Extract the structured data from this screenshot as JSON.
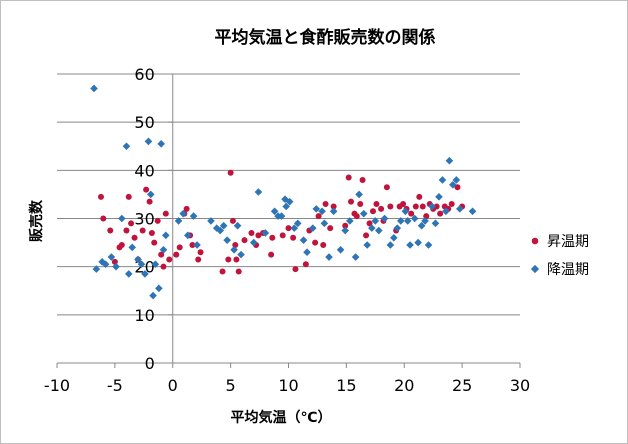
{
  "chart_data": {
    "type": "scatter",
    "title": "平均気温と食酢販売数の関係",
    "xlabel": "平均気温（℃）",
    "ylabel": "販売数",
    "xlim": [
      -10,
      30
    ],
    "ylim": [
      0,
      60
    ],
    "xticks": [
      -10,
      -5,
      0,
      5,
      10,
      15,
      20,
      25,
      30
    ],
    "yticks": [
      0,
      10,
      20,
      30,
      40,
      50,
      60
    ],
    "grid": "horizontal",
    "legend_position": "right",
    "series": [
      {
        "name": "昇温期",
        "color": "#c0143c",
        "marker": "circle",
        "points": [
          [
            -6.2,
            34.5
          ],
          [
            -6.0,
            30.0
          ],
          [
            -5.4,
            27.5
          ],
          [
            -5.0,
            21.0
          ],
          [
            -4.6,
            24.0
          ],
          [
            -4.4,
            24.5
          ],
          [
            -4.0,
            27.5
          ],
          [
            -3.8,
            34.5
          ],
          [
            -3.6,
            29.0
          ],
          [
            -3.3,
            26.0
          ],
          [
            -3.0,
            21.5
          ],
          [
            -2.6,
            27.5
          ],
          [
            -2.3,
            36.0
          ],
          [
            -2.0,
            33.5
          ],
          [
            -1.8,
            27.0
          ],
          [
            -1.6,
            25.0
          ],
          [
            -1.3,
            29.5
          ],
          [
            -1.0,
            22.5
          ],
          [
            -0.8,
            20.0
          ],
          [
            -0.6,
            31.0
          ],
          [
            -0.3,
            21.5
          ],
          [
            0.3,
            22.5
          ],
          [
            0.6,
            24.0
          ],
          [
            1.0,
            31.0
          ],
          [
            1.2,
            32.0
          ],
          [
            1.5,
            26.5
          ],
          [
            1.7,
            24.5
          ],
          [
            2.2,
            21.5
          ],
          [
            2.4,
            23.0
          ],
          [
            4.3,
            19.0
          ],
          [
            4.8,
            21.5
          ],
          [
            5.0,
            39.5
          ],
          [
            5.2,
            29.5
          ],
          [
            5.4,
            24.5
          ],
          [
            5.5,
            21.5
          ],
          [
            5.7,
            19.0
          ],
          [
            6.2,
            25.5
          ],
          [
            6.8,
            27.0
          ],
          [
            7.2,
            24.5
          ],
          [
            7.4,
            26.5
          ],
          [
            7.8,
            27.0
          ],
          [
            8.5,
            22.5
          ],
          [
            8.6,
            26.0
          ],
          [
            9.5,
            26.5
          ],
          [
            10.0,
            28.0
          ],
          [
            10.4,
            26.0
          ],
          [
            10.6,
            19.5
          ],
          [
            11.5,
            20.5
          ],
          [
            11.8,
            27.5
          ],
          [
            12.3,
            25.0
          ],
          [
            12.6,
            30.5
          ],
          [
            13.0,
            24.5
          ],
          [
            13.2,
            33.0
          ],
          [
            13.6,
            28.0
          ],
          [
            13.9,
            32.5
          ],
          [
            14.9,
            28.5
          ],
          [
            15.2,
            38.5
          ],
          [
            15.4,
            33.5
          ],
          [
            15.7,
            31.0
          ],
          [
            15.9,
            30.5
          ],
          [
            16.2,
            33.0
          ],
          [
            16.4,
            38.0
          ],
          [
            16.7,
            26.5
          ],
          [
            17.0,
            29.0
          ],
          [
            17.3,
            31.5
          ],
          [
            17.6,
            33.0
          ],
          [
            18.0,
            32.0
          ],
          [
            18.2,
            29.5
          ],
          [
            18.5,
            36.5
          ],
          [
            18.8,
            32.5
          ],
          [
            19.3,
            27.5
          ],
          [
            19.6,
            32.5
          ],
          [
            19.9,
            33.0
          ],
          [
            20.2,
            32.0
          ],
          [
            20.6,
            31.0
          ],
          [
            21.0,
            32.5
          ],
          [
            21.3,
            34.5
          ],
          [
            21.6,
            32.5
          ],
          [
            21.9,
            30.5
          ],
          [
            22.2,
            33.0
          ],
          [
            22.5,
            32.0
          ],
          [
            22.8,
            32.5
          ],
          [
            23.1,
            31.0
          ],
          [
            23.5,
            32.5
          ],
          [
            23.8,
            32.0
          ],
          [
            24.1,
            33.0
          ],
          [
            24.6,
            36.5
          ],
          [
            25.0,
            32.5
          ]
        ]
      },
      {
        "name": "降温期",
        "color": "#2e75b6",
        "marker": "diamond",
        "points": [
          [
            -6.8,
            57.0
          ],
          [
            -6.6,
            19.5
          ],
          [
            -6.1,
            21.0
          ],
          [
            -5.8,
            20.5
          ],
          [
            -5.3,
            22.0
          ],
          [
            -4.9,
            20.0
          ],
          [
            -4.4,
            30.0
          ],
          [
            -4.0,
            45.0
          ],
          [
            -3.8,
            18.5
          ],
          [
            -3.5,
            24.0
          ],
          [
            -3.0,
            21.5
          ],
          [
            -2.7,
            20.5
          ],
          [
            -2.4,
            18.5
          ],
          [
            -2.1,
            46.0
          ],
          [
            -1.9,
            35.0
          ],
          [
            -1.7,
            14.0
          ],
          [
            -1.5,
            20.5
          ],
          [
            -1.2,
            15.5
          ],
          [
            -1.0,
            45.5
          ],
          [
            -0.8,
            23.5
          ],
          [
            -0.6,
            26.5
          ],
          [
            0.5,
            29.5
          ],
          [
            0.9,
            31.0
          ],
          [
            1.3,
            26.5
          ],
          [
            1.8,
            30.5
          ],
          [
            2.1,
            24.5
          ],
          [
            3.3,
            29.5
          ],
          [
            3.8,
            28.0
          ],
          [
            4.1,
            27.5
          ],
          [
            4.4,
            28.5
          ],
          [
            4.7,
            25.5
          ],
          [
            5.3,
            23.5
          ],
          [
            5.6,
            28.5
          ],
          [
            5.9,
            22.5
          ],
          [
            7.0,
            25.0
          ],
          [
            7.4,
            35.5
          ],
          [
            8.0,
            27.0
          ],
          [
            8.8,
            31.5
          ],
          [
            9.1,
            30.5
          ],
          [
            9.4,
            30.5
          ],
          [
            9.7,
            34.0
          ],
          [
            10.1,
            33.5
          ],
          [
            10.5,
            28.0
          ],
          [
            10.8,
            29.0
          ],
          [
            11.3,
            25.5
          ],
          [
            11.6,
            23.0
          ],
          [
            12.1,
            28.0
          ],
          [
            12.4,
            32.0
          ],
          [
            13.1,
            29.0
          ],
          [
            13.5,
            22.0
          ],
          [
            13.9,
            31.5
          ],
          [
            14.5,
            23.5
          ],
          [
            14.9,
            27.5
          ],
          [
            15.3,
            29.5
          ],
          [
            15.8,
            22.0
          ],
          [
            16.1,
            35.0
          ],
          [
            16.5,
            31.0
          ],
          [
            16.8,
            24.5
          ],
          [
            17.2,
            28.0
          ],
          [
            17.5,
            29.5
          ],
          [
            17.8,
            27.5
          ],
          [
            18.3,
            30.0
          ],
          [
            18.8,
            24.5
          ],
          [
            19.1,
            26.0
          ],
          [
            19.4,
            28.0
          ],
          [
            19.7,
            29.5
          ],
          [
            20.1,
            31.5
          ],
          [
            20.5,
            24.5
          ],
          [
            20.9,
            30.0
          ],
          [
            21.2,
            25.0
          ],
          [
            21.5,
            28.5
          ],
          [
            21.8,
            29.5
          ],
          [
            22.1,
            24.5
          ],
          [
            22.4,
            32.5
          ],
          [
            22.7,
            29.0
          ],
          [
            23.0,
            34.5
          ],
          [
            23.3,
            38.0
          ],
          [
            23.6,
            31.5
          ],
          [
            23.9,
            42.0
          ],
          [
            24.2,
            37.0
          ],
          [
            24.5,
            38.0
          ],
          [
            24.8,
            32.0
          ],
          [
            25.9,
            31.5
          ],
          [
            20.3,
            29.5
          ],
          [
            9.8,
            32.5
          ],
          [
            12.9,
            31.5
          ]
        ]
      }
    ]
  }
}
